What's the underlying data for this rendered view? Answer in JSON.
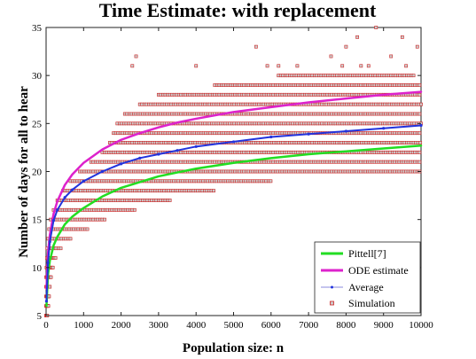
{
  "chart_data": {
    "type": "scatter",
    "title": "Time Estimate: with replacement",
    "xlabel": "Population size: n",
    "ylabel": "Number of days for all to hear",
    "xlim": [
      0,
      10000
    ],
    "ylim": [
      5,
      35
    ],
    "xticks": [
      0,
      1000,
      2000,
      3000,
      4000,
      5000,
      6000,
      7000,
      8000,
      9000,
      10000
    ],
    "yticks": [
      5,
      10,
      15,
      20,
      25,
      30,
      35
    ],
    "grid": false,
    "legend_position": "bottom-right",
    "series": [
      {
        "name": "Pittell[7]",
        "style": "line",
        "color": "#22dd22",
        "x": [
          10,
          50,
          100,
          200,
          300,
          500,
          700,
          1000,
          1500,
          2000,
          2500,
          3000,
          3500,
          4000,
          5000,
          6000,
          7000,
          8000,
          9000,
          10000
        ],
        "y": [
          6.0,
          9.2,
          10.7,
          12.3,
          13.2,
          14.5,
          15.3,
          16.2,
          17.4,
          18.3,
          18.9,
          19.5,
          19.9,
          20.3,
          20.9,
          21.4,
          21.8,
          22.1,
          22.4,
          22.7
        ]
      },
      {
        "name": "ODE estimate",
        "style": "line",
        "color": "#dd22cc",
        "x": [
          10,
          50,
          100,
          200,
          300,
          500,
          700,
          1000,
          1500,
          2000,
          2500,
          3000,
          3500,
          4000,
          5000,
          6000,
          7000,
          8000,
          9000,
          10000
        ],
        "y": [
          7.8,
          11.5,
          13.4,
          15.6,
          16.9,
          18.6,
          19.7,
          20.9,
          22.3,
          23.3,
          24.0,
          24.6,
          25.1,
          25.5,
          26.2,
          26.7,
          27.2,
          27.6,
          28.0,
          28.3
        ]
      },
      {
        "name": "Average",
        "style": "line-marker",
        "color": "#2233dd",
        "x": [
          10,
          50,
          100,
          200,
          300,
          500,
          700,
          1000,
          1500,
          2000,
          2500,
          3000,
          3500,
          4000,
          5000,
          6000,
          7000,
          8000,
          9000,
          10000
        ],
        "y": [
          6.5,
          10.5,
          12.7,
          14.9,
          16.0,
          17.3,
          18.1,
          19.0,
          20.0,
          20.8,
          21.4,
          21.8,
          22.2,
          22.6,
          23.1,
          23.6,
          23.9,
          24.2,
          24.5,
          24.8
        ]
      },
      {
        "name": "Simulation",
        "style": "markers",
        "color": "#cc2222",
        "bands": [
          {
            "y": 5,
            "x": [
              0,
              30
            ]
          },
          {
            "y": 6,
            "x": [
              0,
              60
            ]
          },
          {
            "y": 7,
            "x": [
              0,
              80
            ]
          },
          {
            "y": 8,
            "x": [
              0,
              100
            ]
          },
          {
            "y": 9,
            "x": [
              0,
              130
            ]
          },
          {
            "y": 10,
            "x": [
              10,
              180
            ]
          },
          {
            "y": 11,
            "x": [
              20,
              250
            ]
          },
          {
            "y": 12,
            "x": [
              30,
              400
            ]
          },
          {
            "y": 13,
            "x": [
              50,
              700
            ]
          },
          {
            "y": 14,
            "x": [
              80,
              1100
            ]
          },
          {
            "y": 15,
            "x": [
              120,
              1600
            ]
          },
          {
            "y": 16,
            "x": [
              200,
              2400
            ]
          },
          {
            "y": 17,
            "x": [
              300,
              3300
            ]
          },
          {
            "y": 18,
            "x": [
              450,
              4500
            ]
          },
          {
            "y": 19,
            "x": [
              650,
              6000
            ]
          },
          {
            "y": 20,
            "x": [
              900,
              10000
            ]
          },
          {
            "y": 21,
            "x": [
              1200,
              10000
            ]
          },
          {
            "y": 22,
            "x": [
              1500,
              10000
            ]
          },
          {
            "y": 23,
            "x": [
              1700,
              10000
            ]
          },
          {
            "y": 24,
            "x": [
              1800,
              10000
            ]
          },
          {
            "y": 25,
            "x": [
              1900,
              10000
            ]
          },
          {
            "y": 26,
            "x": [
              2100,
              10000
            ]
          },
          {
            "y": 27,
            "x": [
              2500,
              10000
            ]
          },
          {
            "y": 28,
            "x": [
              3000,
              10000
            ]
          },
          {
            "y": 29,
            "x": [
              4500,
              10000
            ]
          },
          {
            "y": 30,
            "x": [
              6200,
              9800
            ]
          }
        ],
        "outliers": [
          {
            "x": 2300,
            "y": 31
          },
          {
            "x": 2400,
            "y": 32
          },
          {
            "x": 4000,
            "y": 31
          },
          {
            "x": 5600,
            "y": 33
          },
          {
            "x": 5900,
            "y": 31
          },
          {
            "x": 6200,
            "y": 31
          },
          {
            "x": 6700,
            "y": 31
          },
          {
            "x": 7600,
            "y": 32
          },
          {
            "x": 7900,
            "y": 31
          },
          {
            "x": 8000,
            "y": 33
          },
          {
            "x": 8300,
            "y": 34
          },
          {
            "x": 8400,
            "y": 31
          },
          {
            "x": 8600,
            "y": 31
          },
          {
            "x": 8800,
            "y": 35
          },
          {
            "x": 9200,
            "y": 32
          },
          {
            "x": 9500,
            "y": 34
          },
          {
            "x": 9600,
            "y": 31
          },
          {
            "x": 9900,
            "y": 33
          }
        ]
      }
    ]
  }
}
